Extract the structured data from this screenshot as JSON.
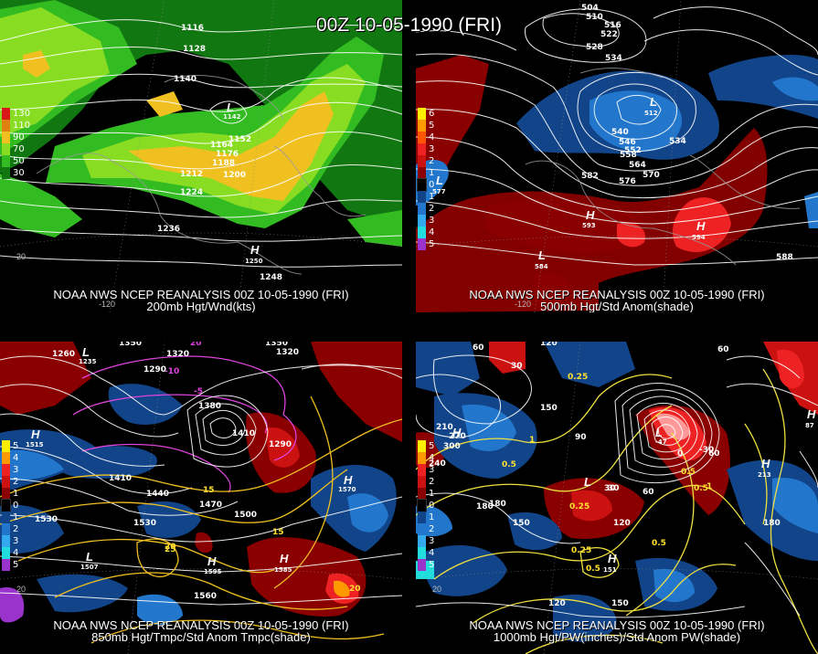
{
  "title": "00Z 10-05-1990 (FRI)",
  "panels": [
    {
      "id": "p1",
      "caption_line1": "NOAA NWS NCEP REANALYSIS 00Z 10-05-1990 (FRI)",
      "caption_line2": "200mb Hgt/Wnd(kts)",
      "legend": [
        {
          "label": "130",
          "color": "#d81818"
        },
        {
          "label": "110",
          "color": "#e08010"
        },
        {
          "label": "90",
          "color": "#f0c020"
        },
        {
          "label": "70",
          "color": "#88dd22"
        },
        {
          "label": "50",
          "color": "#33bb22"
        },
        {
          "label": "30",
          "color": "#117711"
        }
      ],
      "contour_labels": [
        "1116",
        "1128",
        "1140",
        "1152",
        "1164",
        "1176",
        "1188",
        "1200",
        "1212",
        "1224",
        "1236",
        "1248",
        "1142",
        "1250"
      ],
      "centers": [
        {
          "type": "L",
          "value": "1142"
        },
        {
          "type": "H",
          "value": "1250"
        }
      ],
      "ticks": [
        "-120",
        "20"
      ]
    },
    {
      "id": "p2",
      "caption_line1": "NOAA NWS NCEP REANALYSIS 00Z 10-05-1990 (FRI)",
      "caption_line2": "500mb Hgt/Std Anom(shade)",
      "legend": [
        {
          "label": "6",
          "color": "#ffee00"
        },
        {
          "label": "5",
          "color": "#ff9900"
        },
        {
          "label": "4",
          "color": "#ff5500"
        },
        {
          "label": "3",
          "color": "#ee2222"
        },
        {
          "label": "2",
          "color": "#cc1111"
        },
        {
          "label": "1",
          "color": "#8a0000"
        },
        {
          "label": "0",
          "color": "#000000"
        },
        {
          "label": "1",
          "color": "#114488"
        },
        {
          "label": "2",
          "color": "#2277cc"
        },
        {
          "label": "3",
          "color": "#33aaee"
        },
        {
          "label": "4",
          "color": "#22dddd"
        },
        {
          "label": "5",
          "color": "#9933cc"
        }
      ],
      "contour_labels": [
        "504",
        "510",
        "516",
        "522",
        "528",
        "534",
        "540",
        "546",
        "552",
        "558",
        "564",
        "570",
        "576",
        "582",
        "588",
        "594"
      ],
      "centers": [
        {
          "type": "L",
          "value": "512"
        },
        {
          "type": "H",
          "value": "593"
        },
        {
          "type": "H",
          "value": "594"
        },
        {
          "type": "L",
          "value": "584"
        },
        {
          "type": "L",
          "value": "577"
        }
      ],
      "ticks": [
        "-120"
      ]
    },
    {
      "id": "p3",
      "caption_line1": "NOAA NWS NCEP REANALYSIS 00Z 10-05-1990 (FRI)",
      "caption_line2": "850mb Hgt/Tmpc/Std Anom Tmpc(shade)",
      "legend": [
        {
          "label": "5",
          "color": "#ffee00"
        },
        {
          "label": "4",
          "color": "#ff9900"
        },
        {
          "label": "3",
          "color": "#ee2222"
        },
        {
          "label": "2",
          "color": "#cc1111"
        },
        {
          "label": "1",
          "color": "#8a0000"
        },
        {
          "label": "0",
          "color": "#000000"
        },
        {
          "label": "1",
          "color": "#114488"
        },
        {
          "label": "2",
          "color": "#2277cc"
        },
        {
          "label": "3",
          "color": "#33aaee"
        },
        {
          "label": "4",
          "color": "#22dddd"
        },
        {
          "label": "5",
          "color": "#9933cc"
        }
      ],
      "contour_labels": [
        "1260",
        "1350",
        "1320",
        "1290",
        "1380",
        "1410",
        "1440",
        "1470",
        "1500",
        "1530",
        "1560",
        "1350",
        "1320",
        "1410",
        "15",
        "20",
        "25",
        "-10",
        "-5",
        "0"
      ],
      "centers": [
        {
          "type": "L",
          "value": "1235"
        },
        {
          "type": "H",
          "value": "1595"
        },
        {
          "type": "H",
          "value": "1585"
        },
        {
          "type": "L",
          "value": "1507"
        },
        {
          "type": "H",
          "value": "1515"
        },
        {
          "type": "H",
          "value": "1570"
        }
      ],
      "ticks": [
        "20"
      ]
    },
    {
      "id": "p4",
      "caption_line1": "NOAA NWS NCEP REANALYSIS 00Z 10-05-1990 (FRI)",
      "caption_line2": "1000mb Hgt/PW(inches)/Std Anom PW(shade)",
      "legend": [
        {
          "label": "5",
          "color": "#ffee00"
        },
        {
          "label": "4",
          "color": "#ff9900"
        },
        {
          "label": "3",
          "color": "#ee2222"
        },
        {
          "label": "2",
          "color": "#cc1111"
        },
        {
          "label": "1",
          "color": "#8a0000"
        },
        {
          "label": "0",
          "color": "#000000"
        },
        {
          "label": "1",
          "color": "#114488"
        },
        {
          "label": "2",
          "color": "#2277cc"
        },
        {
          "label": "3",
          "color": "#33aaee"
        },
        {
          "label": "4",
          "color": "#22dddd"
        },
        {
          "label": "5",
          "color": "#9933cc"
        }
      ],
      "contour_labels": [
        "60",
        "30",
        "120",
        "150",
        "180",
        "210",
        "240",
        "270",
        "90",
        "0.25",
        "0.5",
        "1",
        "-30",
        "0",
        "60",
        "90",
        "120",
        "150",
        "180"
      ],
      "centers": [
        {
          "type": "H",
          "value": "300"
        },
        {
          "type": "H",
          "value": "213"
        },
        {
          "type": "L",
          "value": "-47"
        },
        {
          "type": "L",
          "value": "30"
        },
        {
          "type": "H",
          "value": "151"
        },
        {
          "type": "H",
          "value": "87"
        }
      ],
      "ticks": [
        "20"
      ]
    }
  ]
}
